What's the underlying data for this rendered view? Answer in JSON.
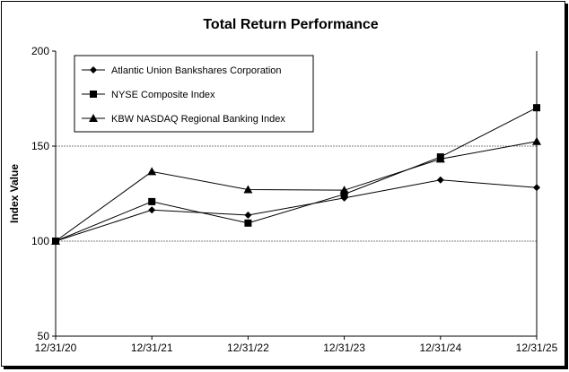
{
  "chart_data": {
    "type": "line",
    "title": "Total Return Performance",
    "xlabel": "",
    "ylabel": "Index Value",
    "categories": [
      "12/31/20",
      "12/31/21",
      "12/31/22",
      "12/31/23",
      "12/31/24",
      "12/31/25"
    ],
    "ylim": [
      50,
      200
    ],
    "yticks": [
      50,
      100,
      150,
      200
    ],
    "grid": "horizontal dashed at 100 and 150",
    "legend_position": "top-left",
    "series": [
      {
        "name": "Atlantic Union Bankshares Corporation",
        "marker": "diamond",
        "values": [
          100,
          116.4,
          113.7,
          122.7,
          132.2,
          128.2
        ]
      },
      {
        "name": "NYSE Composite Index",
        "marker": "square",
        "values": [
          100,
          120.8,
          109.5,
          124.7,
          144.3,
          170.2
        ]
      },
      {
        "name": "KBW NASDAQ Regional Banking Index",
        "marker": "triangle",
        "values": [
          100,
          136.6,
          127.1,
          126.8,
          143.2,
          152.5
        ]
      }
    ],
    "colors": {
      "line": "#000000",
      "grid": "#808080"
    }
  }
}
